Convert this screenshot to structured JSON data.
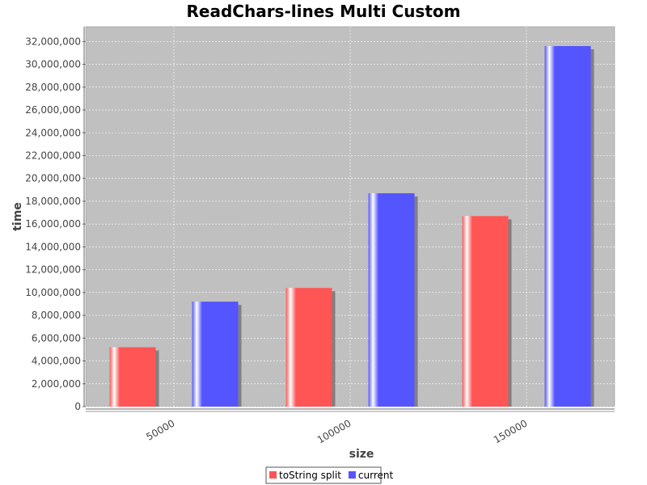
{
  "chart_data": {
    "type": "bar",
    "title": "ReadChars-lines Multi Custom",
    "xlabel": "size",
    "ylabel": "time",
    "categories": [
      "50000",
      "100000",
      "150000"
    ],
    "series": [
      {
        "name": "toString split",
        "color": "#ff5555",
        "values": [
          5200000,
          10400000,
          16700000
        ]
      },
      {
        "name": "current",
        "color": "#5555ff",
        "values": [
          9200000,
          18700000,
          31600000
        ]
      }
    ],
    "ylim": [
      0,
      33300000
    ],
    "yticks": [
      0,
      2000000,
      4000000,
      6000000,
      8000000,
      10000000,
      12000000,
      14000000,
      16000000,
      18000000,
      20000000,
      22000000,
      24000000,
      26000000,
      28000000,
      30000000,
      32000000
    ],
    "ytick_labels": [
      "0",
      "2,000,000",
      "4,000,000",
      "6,000,000",
      "8,000,000",
      "10,000,000",
      "12,000,000",
      "14,000,000",
      "16,000,000",
      "18,000,000",
      "20,000,000",
      "22,000,000",
      "24,000,000",
      "26,000,000",
      "28,000,000",
      "30,000,000",
      "32,000,000"
    ],
    "grid": true,
    "legend_position": "bottom-center",
    "plot_background": "#c0c0c0"
  }
}
